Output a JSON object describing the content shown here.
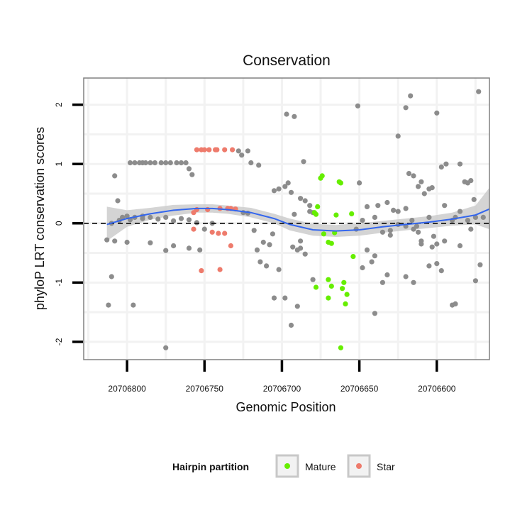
{
  "chart_data": {
    "type": "scatter",
    "title": "Conservation",
    "xlabel": "Genomic Position",
    "ylabel": "phyloP LRT conservation scores",
    "x_reversed": true,
    "xlim": [
      20706828,
      20706566
    ],
    "ylim": [
      -2.3,
      2.45
    ],
    "x_ticks": [
      20706800,
      20706750,
      20706700,
      20706650,
      20706600
    ],
    "x_tick_labels": [
      "20706800",
      "20706750",
      "20706700",
      "20706650",
      "20706600"
    ],
    "y_ticks": [
      -2,
      -1,
      0,
      1,
      2
    ],
    "y_tick_labels": [
      "-2",
      "-1",
      "0",
      "1",
      "2"
    ],
    "reference_line": {
      "y": 0,
      "style": "dashed"
    },
    "colors": {
      "other": "#8c8c8c",
      "mature": "#66ee00",
      "star": "#ee7b6c",
      "smooth_line": "#3366ee",
      "smooth_band": "#cccccc",
      "panel_border": "#808080",
      "grid": "#f2f2f2"
    },
    "legend": {
      "title": "Hairpin partition",
      "position": "bottom",
      "entries": [
        {
          "label": "Mature",
          "color": "#66ee00"
        },
        {
          "label": "Star",
          "color": "#ee7b6c"
        }
      ]
    },
    "smooth": {
      "x": [
        20706813,
        20706800,
        20706785,
        20706770,
        20706755,
        20706745,
        20706735,
        20706720,
        20706705,
        20706695,
        20706680,
        20706665,
        20706650,
        20706635,
        20706620,
        20706605,
        20706590,
        20706575,
        20706566
      ],
      "y": [
        -0.02,
        0.08,
        0.16,
        0.22,
        0.25,
        0.25,
        0.23,
        0.18,
        0.08,
        -0.02,
        -0.11,
        -0.13,
        -0.11,
        -0.06,
        -0.02,
        0.02,
        0.07,
        0.14,
        0.24
      ],
      "band_upper": [
        0.28,
        0.22,
        0.26,
        0.31,
        0.32,
        0.32,
        0.3,
        0.26,
        0.16,
        0.08,
        -0.01,
        -0.03,
        0.0,
        0.04,
        0.08,
        0.12,
        0.18,
        0.3,
        0.6
      ],
      "band_lower": [
        -0.3,
        -0.06,
        0.06,
        0.13,
        0.18,
        0.18,
        0.16,
        0.1,
        0.0,
        -0.12,
        -0.21,
        -0.23,
        -0.21,
        -0.16,
        -0.12,
        -0.08,
        -0.04,
        -0.02,
        -0.1
      ]
    },
    "series": [
      {
        "name": "Mature",
        "color": "#66ee00",
        "points": [
          [
            20706675,
            0.76
          ],
          [
            20706674,
            0.8
          ],
          [
            20706663,
            0.7
          ],
          [
            20706662,
            0.68
          ],
          [
            20706679,
            0.18
          ],
          [
            20706677,
            0.28
          ],
          [
            20706678,
            0.15
          ],
          [
            20706673,
            -0.18
          ],
          [
            20706670,
            -0.32
          ],
          [
            20706668,
            -0.34
          ],
          [
            20706665,
            0.14
          ],
          [
            20706655,
            0.16
          ],
          [
            20706666,
            -0.16
          ],
          [
            20706678,
            -1.08
          ],
          [
            20706670,
            -0.95
          ],
          [
            20706668,
            -1.06
          ],
          [
            20706660,
            -1.0
          ],
          [
            20706661,
            -1.1
          ],
          [
            20706658,
            -1.2
          ],
          [
            20706659,
            -1.36
          ],
          [
            20706654,
            -0.56
          ],
          [
            20706670,
            -1.26
          ],
          [
            20706662,
            -2.1
          ]
        ]
      },
      {
        "name": "Star",
        "color": "#ee7b6c",
        "points": [
          [
            20706747,
            1.24
          ],
          [
            20706750,
            1.24
          ],
          [
            20706755,
            1.24
          ],
          [
            20706752,
            1.24
          ],
          [
            20706743,
            1.24
          ],
          [
            20706742,
            1.24
          ],
          [
            20706737,
            1.24
          ],
          [
            20706732,
            1.24
          ],
          [
            20706755,
            0.23
          ],
          [
            20706748,
            0.23
          ],
          [
            20706740,
            0.25
          ],
          [
            20706735,
            0.25
          ],
          [
            20706757,
            0.18
          ],
          [
            20706733,
            0.25
          ],
          [
            20706730,
            0.24
          ],
          [
            20706745,
            -0.15
          ],
          [
            20706741,
            -0.17
          ],
          [
            20706737,
            -0.17
          ],
          [
            20706733,
            -0.38
          ],
          [
            20706757,
            -0.1
          ],
          [
            20706752,
            -0.8
          ],
          [
            20706740,
            -0.78
          ]
        ]
      },
      {
        "name": "",
        "color": "#8c8c8c",
        "points": [
          [
            20706813,
            -0.28
          ],
          [
            20706810,
            -0.9
          ],
          [
            20706808,
            0.8
          ],
          [
            20706806,
            0.38
          ],
          [
            20706803,
            0.1
          ],
          [
            20706800,
            0.12
          ],
          [
            20706798,
            1.02
          ],
          [
            20706795,
            1.02
          ],
          [
            20706792,
            1.02
          ],
          [
            20706790,
            1.02
          ],
          [
            20706788,
            1.02
          ],
          [
            20706785,
            1.02
          ],
          [
            20706782,
            1.02
          ],
          [
            20706778,
            1.02
          ],
          [
            20706775,
            1.02
          ],
          [
            20706772,
            1.02
          ],
          [
            20706768,
            1.02
          ],
          [
            20706765,
            1.02
          ],
          [
            20706762,
            1.02
          ],
          [
            20706760,
            0.92
          ],
          [
            20706758,
            0.82
          ],
          [
            20706812,
            -1.38
          ],
          [
            20706808,
            -0.3
          ],
          [
            20706800,
            -0.32
          ],
          [
            20706796,
            -1.38
          ],
          [
            20706790,
            0.08
          ],
          [
            20706785,
            -0.33
          ],
          [
            20706775,
            -0.46
          ],
          [
            20706770,
            -0.38
          ],
          [
            20706760,
            -0.42
          ],
          [
            20706753,
            -0.45
          ],
          [
            20706775,
            -2.1
          ],
          [
            20706810,
            0.0
          ],
          [
            20706805,
            0.05
          ],
          [
            20706798,
            0.06
          ],
          [
            20706795,
            0.1
          ],
          [
            20706790,
            0.12
          ],
          [
            20706785,
            0.1
          ],
          [
            20706780,
            0.07
          ],
          [
            20706775,
            0.1
          ],
          [
            20706770,
            0.04
          ],
          [
            20706765,
            0.08
          ],
          [
            20706760,
            0.06
          ],
          [
            20706755,
            0.01
          ],
          [
            20706750,
            -0.1
          ],
          [
            20706745,
            0.0
          ],
          [
            20706728,
            1.22
          ],
          [
            20706726,
            1.15
          ],
          [
            20706722,
            1.22
          ],
          [
            20706720,
            1.02
          ],
          [
            20706715,
            0.98
          ],
          [
            20706725,
            0.18
          ],
          [
            20706722,
            0.17
          ],
          [
            20706718,
            -0.12
          ],
          [
            20706716,
            -0.45
          ],
          [
            20706714,
            -0.65
          ],
          [
            20706712,
            -0.32
          ],
          [
            20706710,
            -0.72
          ],
          [
            20706708,
            -0.36
          ],
          [
            20706706,
            -0.18
          ],
          [
            20706702,
            -0.78
          ],
          [
            20706705,
            0.55
          ],
          [
            20706702,
            0.58
          ],
          [
            20706698,
            0.62
          ],
          [
            20706696,
            0.68
          ],
          [
            20706694,
            0.52
          ],
          [
            20706692,
            0.15
          ],
          [
            20706688,
            0.42
          ],
          [
            20706685,
            0.38
          ],
          [
            20706682,
            0.2
          ],
          [
            20706680,
            0.18
          ],
          [
            20706694,
            -1.72
          ],
          [
            20706697,
            1.84
          ],
          [
            20706692,
            1.8
          ],
          [
            20706705,
            -1.26
          ],
          [
            20706698,
            -1.26
          ],
          [
            20706690,
            -1.4
          ],
          [
            20706686,
            1.04
          ],
          [
            20706682,
            0.3
          ],
          [
            20706680,
            -0.95
          ],
          [
            20706688,
            -0.3
          ],
          [
            20706685,
            -0.52
          ],
          [
            20706693,
            -0.4
          ],
          [
            20706690,
            -0.45
          ],
          [
            20706688,
            -0.42
          ],
          [
            20706651,
            1.98
          ],
          [
            20706650,
            0.68
          ],
          [
            20706648,
            -0.75
          ],
          [
            20706645,
            -0.45
          ],
          [
            20706642,
            -0.65
          ],
          [
            20706640,
            -1.52
          ],
          [
            20706635,
            -1.0
          ],
          [
            20706632,
            -0.87
          ],
          [
            20706628,
            0.22
          ],
          [
            20706625,
            1.47
          ],
          [
            20706620,
            1.95
          ],
          [
            20706617,
            2.15
          ],
          [
            20706618,
            0.84
          ],
          [
            20706615,
            0.8
          ],
          [
            20706612,
            0.62
          ],
          [
            20706610,
            0.7
          ],
          [
            20706605,
            0.58
          ],
          [
            20706603,
            0.6
          ],
          [
            20706600,
            1.86
          ],
          [
            20706597,
            0.95
          ],
          [
            20706594,
            1.0
          ],
          [
            20706590,
            0.05
          ],
          [
            20706588,
            0.1
          ],
          [
            20706585,
            1.0
          ],
          [
            20706582,
            0.7
          ],
          [
            20706580,
            0.68
          ],
          [
            20706578,
            0.72
          ],
          [
            20706576,
            0.4
          ],
          [
            20706573,
            2.22
          ],
          [
            20706570,
            0.1
          ],
          [
            20706572,
            -0.7
          ],
          [
            20706575,
            -0.97
          ],
          [
            20706590,
            -1.38
          ],
          [
            20706588,
            -1.36
          ],
          [
            20706600,
            -0.68
          ],
          [
            20706605,
            -0.72
          ],
          [
            20706610,
            -0.35
          ],
          [
            20706612,
            -0.15
          ],
          [
            20706615,
            -0.1
          ],
          [
            20706620,
            -0.05
          ],
          [
            20706625,
            -0.02
          ],
          [
            20706630,
            -0.12
          ],
          [
            20706635,
            -0.15
          ],
          [
            20706638,
            0.3
          ],
          [
            20706640,
            0.1
          ],
          [
            20706645,
            0.28
          ],
          [
            20706648,
            0.05
          ],
          [
            20706652,
            -0.1
          ],
          [
            20706600,
            -0.35
          ],
          [
            20706595,
            -0.3
          ],
          [
            20706585,
            -0.38
          ],
          [
            20706580,
            0.05
          ],
          [
            20706575,
            0.1
          ],
          [
            20706578,
            -0.1
          ],
          [
            20706610,
            -0.3
          ],
          [
            20706603,
            -0.4
          ],
          [
            20706608,
            0.5
          ],
          [
            20706595,
            0.3
          ],
          [
            20706585,
            0.2
          ],
          [
            20706620,
            0.25
          ],
          [
            20706625,
            0.2
          ],
          [
            20706630,
            -0.2
          ],
          [
            20706615,
            -1.0
          ],
          [
            20706620,
            -0.9
          ],
          [
            20706597,
            -0.8
          ],
          [
            20706605,
            0.1
          ],
          [
            20706616,
            0.05
          ],
          [
            20706640,
            -0.55
          ],
          [
            20706632,
            0.35
          ],
          [
            20706613,
            -0.05
          ],
          [
            20706602,
            -0.22
          ]
        ]
      }
    ]
  }
}
